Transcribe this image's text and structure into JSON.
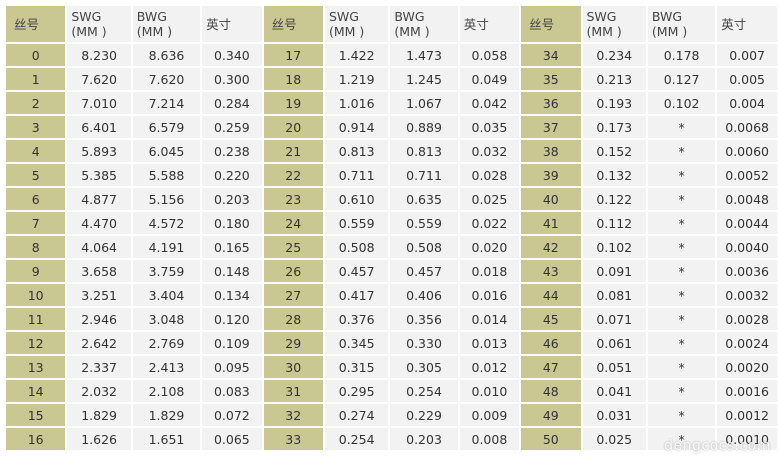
{
  "headers": {
    "wire": "丝号",
    "swg_line1": "SWG",
    "swg_line2": "(MM )",
    "bwg_line1": "BWG",
    "bwg_line2": "(MM )",
    "inch": "英寸"
  },
  "rows": [
    [
      [
        "0",
        "8.230",
        "8.636",
        "0.340"
      ],
      [
        "17",
        "1.422",
        "1.473",
        "0.058"
      ],
      [
        "34",
        "0.234",
        "0.178",
        "0.007"
      ]
    ],
    [
      [
        "1",
        "7.620",
        "7.620",
        "0.300"
      ],
      [
        "18",
        "1.219",
        "1.245",
        "0.049"
      ],
      [
        "35",
        "0.213",
        "0.127",
        "0.005"
      ]
    ],
    [
      [
        "2",
        "7.010",
        "7.214",
        "0.284"
      ],
      [
        "19",
        "1.016",
        "1.067",
        "0.042"
      ],
      [
        "36",
        "0.193",
        "0.102",
        "0.004"
      ]
    ],
    [
      [
        "3",
        "6.401",
        "6.579",
        "0.259"
      ],
      [
        "20",
        "0.914",
        "0.889",
        "0.035"
      ],
      [
        "37",
        "0.173",
        "*",
        "0.0068"
      ]
    ],
    [
      [
        "4",
        "5.893",
        "6.045",
        "0.238"
      ],
      [
        "21",
        "0.813",
        "0.813",
        "0.032"
      ],
      [
        "38",
        "0.152",
        "*",
        "0.0060"
      ]
    ],
    [
      [
        "5",
        "5.385",
        "5.588",
        "0.220"
      ],
      [
        "22",
        "0.711",
        "0.711",
        "0.028"
      ],
      [
        "39",
        "0.132",
        "*",
        "0.0052"
      ]
    ],
    [
      [
        "6",
        "4.877",
        "5.156",
        "0.203"
      ],
      [
        "23",
        "0.610",
        "0.635",
        "0.025"
      ],
      [
        "40",
        "0.122",
        "*",
        "0.0048"
      ]
    ],
    [
      [
        "7",
        "4.470",
        "4.572",
        "0.180"
      ],
      [
        "24",
        "0.559",
        "0.559",
        "0.022"
      ],
      [
        "41",
        "0.112",
        "*",
        "0.0044"
      ]
    ],
    [
      [
        "8",
        "4.064",
        "4.191",
        "0.165"
      ],
      [
        "25",
        "0.508",
        "0.508",
        "0.020"
      ],
      [
        "42",
        "0.102",
        "*",
        "0.0040"
      ]
    ],
    [
      [
        "9",
        "3.658",
        "3.759",
        "0.148"
      ],
      [
        "26",
        "0.457",
        "0.457",
        "0.018"
      ],
      [
        "43",
        "0.091",
        "*",
        "0.0036"
      ]
    ],
    [
      [
        "10",
        "3.251",
        "3.404",
        "0.134"
      ],
      [
        "27",
        "0.417",
        "0.406",
        "0.016"
      ],
      [
        "44",
        "0.081",
        "*",
        "0.0032"
      ]
    ],
    [
      [
        "11",
        "2.946",
        "3.048",
        "0.120"
      ],
      [
        "28",
        "0.376",
        "0.356",
        "0.014"
      ],
      [
        "45",
        "0.071",
        "*",
        "0.0028"
      ]
    ],
    [
      [
        "12",
        "2.642",
        "2.769",
        "0.109"
      ],
      [
        "29",
        "0.345",
        "0.330",
        "0.013"
      ],
      [
        "46",
        "0.061",
        "*",
        "0.0024"
      ]
    ],
    [
      [
        "13",
        "2.337",
        "2.413",
        "0.095"
      ],
      [
        "30",
        "0.315",
        "0.305",
        "0.012"
      ],
      [
        "47",
        "0.051",
        "*",
        "0.0020"
      ]
    ],
    [
      [
        "14",
        "2.032",
        "2.108",
        "0.083"
      ],
      [
        "31",
        "0.295",
        "0.254",
        "0.010"
      ],
      [
        "48",
        "0.041",
        "*",
        "0.0016"
      ]
    ],
    [
      [
        "15",
        "1.829",
        "1.829",
        "0.072"
      ],
      [
        "32",
        "0.274",
        "0.229",
        "0.009"
      ],
      [
        "49",
        "0.031",
        "*",
        "0.0012"
      ]
    ],
    [
      [
        "16",
        "1.626",
        "1.651",
        "0.065"
      ],
      [
        "33",
        "0.254",
        "0.203",
        "0.008"
      ],
      [
        "50",
        "0.025",
        "*",
        "0.0010"
      ]
    ]
  ],
  "watermark": "dengcocs.com",
  "colors": {
    "wire_cell": "#c9c792",
    "data_cell": "#f2f2f2",
    "text": "#333333"
  }
}
